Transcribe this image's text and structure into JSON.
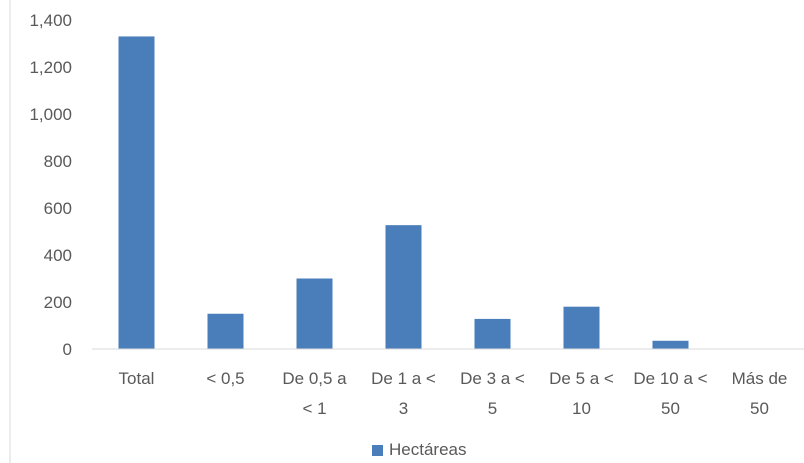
{
  "chart_data": {
    "type": "bar",
    "categories": [
      "Total",
      "< 0,5",
      "De 0,5 a < 1",
      "De 1 a < 3",
      "De 3 a < 5",
      "De 5 a < 10",
      "De 10 a < 50",
      "Más de 50"
    ],
    "category_lines": [
      [
        "Total"
      ],
      [
        "< 0,5"
      ],
      [
        "De 0,5 a",
        "< 1"
      ],
      [
        "De 1 a <",
        "3"
      ],
      [
        "De 3 a <",
        "5"
      ],
      [
        "De 5 a <",
        "10"
      ],
      [
        "De 10 a <",
        "50"
      ],
      [
        "Más de",
        "50"
      ]
    ],
    "series": [
      {
        "name": "Hectáreas",
        "values": [
          1330,
          150,
          300,
          527,
          128,
          180,
          35,
          0
        ],
        "color": "#4a7ebb"
      }
    ],
    "ylim": [
      0,
      1400
    ],
    "yticks": [
      0,
      200,
      400,
      600,
      800,
      1000,
      1200,
      1400
    ],
    "ytick_labels": [
      "0",
      "200",
      "400",
      "600",
      "800",
      "1,000",
      "1,200",
      "1,400"
    ],
    "grid": false,
    "legend_position": "bottom",
    "title": "",
    "xlabel": "",
    "ylabel": ""
  },
  "legend": {
    "label": "Hectáreas",
    "color": "#4a7ebb"
  }
}
